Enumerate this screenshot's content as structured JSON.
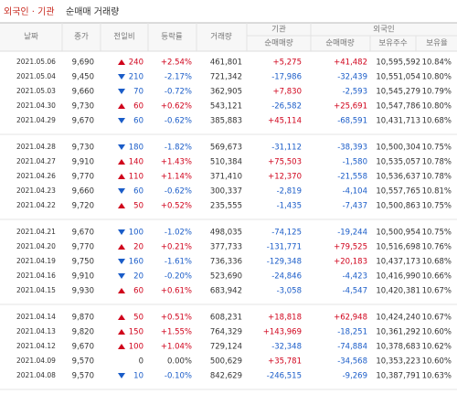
{
  "header": {
    "title_highlight": "외국인 · 기관",
    "title": "순매매 거래량"
  },
  "table": {
    "columns": [
      "날짜",
      "종가",
      "전일비",
      "등락률",
      "거래량"
    ],
    "group_headers": [
      "기관",
      "외국인"
    ],
    "subcolumns": [
      "순매매량",
      "순매매량",
      "보유주수",
      "보유율"
    ],
    "row_groups": [
      {
        "directions": [
          "up",
          "down",
          "down",
          "up",
          "down"
        ],
        "rows": [
          [
            "2021.05.06",
            "9,690",
            "240",
            "+2.54%",
            "461,801",
            "+5,275",
            "+41,482",
            "10,595,592",
            "10.84%"
          ],
          [
            "2021.05.04",
            "9,450",
            "210",
            "-2.17%",
            "721,342",
            "-17,986",
            "-32,439",
            "10,551,054",
            "10.80%"
          ],
          [
            "2021.05.03",
            "9,660",
            "70",
            "-0.72%",
            "362,905",
            "+7,830",
            "-2,593",
            "10,545,279",
            "10.79%"
          ],
          [
            "2021.04.30",
            "9,730",
            "60",
            "+0.62%",
            "543,121",
            "-26,582",
            "+25,691",
            "10,547,786",
            "10.80%"
          ],
          [
            "2021.04.29",
            "9,670",
            "60",
            "-0.62%",
            "385,883",
            "+45,114",
            "-68,591",
            "10,431,713",
            "10.68%"
          ]
        ]
      },
      {
        "directions": [
          "down",
          "up",
          "up",
          "down",
          "up"
        ],
        "rows": [
          [
            "2021.04.28",
            "9,730",
            "180",
            "-1.82%",
            "569,673",
            "-31,112",
            "-38,393",
            "10,500,304",
            "10.75%"
          ],
          [
            "2021.04.27",
            "9,910",
            "140",
            "+1.43%",
            "510,384",
            "+75,503",
            "-1,580",
            "10,535,057",
            "10.78%"
          ],
          [
            "2021.04.26",
            "9,770",
            "110",
            "+1.14%",
            "371,410",
            "+12,370",
            "-21,558",
            "10,536,637",
            "10.78%"
          ],
          [
            "2021.04.23",
            "9,660",
            "60",
            "-0.62%",
            "300,337",
            "-2,819",
            "-4,104",
            "10,557,765",
            "10.81%"
          ],
          [
            "2021.04.22",
            "9,720",
            "50",
            "+0.52%",
            "235,555",
            "-1,435",
            "-7,437",
            "10,500,863",
            "10.75%"
          ]
        ]
      },
      {
        "directions": [
          "down",
          "up",
          "down",
          "down",
          "up"
        ],
        "rows": [
          [
            "2021.04.21",
            "9,670",
            "100",
            "-1.02%",
            "498,035",
            "-74,125",
            "-19,244",
            "10,500,954",
            "10.75%"
          ],
          [
            "2021.04.20",
            "9,770",
            "20",
            "+0.21%",
            "377,733",
            "-131,771",
            "+79,525",
            "10,516,698",
            "10.76%"
          ],
          [
            "2021.04.19",
            "9,750",
            "160",
            "-1.61%",
            "736,336",
            "-129,348",
            "+20,183",
            "10,437,173",
            "10.68%"
          ],
          [
            "2021.04.16",
            "9,910",
            "20",
            "-0.20%",
            "523,690",
            "-24,846",
            "-4,423",
            "10,416,990",
            "10.66%"
          ],
          [
            "2021.04.15",
            "9,930",
            "60",
            "+0.61%",
            "683,942",
            "-3,058",
            "-4,547",
            "10,420,381",
            "10.67%"
          ]
        ]
      },
      {
        "directions": [
          "up",
          "up",
          "up",
          "none",
          "down"
        ],
        "rows": [
          [
            "2021.04.14",
            "9,870",
            "50",
            "+0.51%",
            "608,231",
            "+18,818",
            "+62,948",
            "10,424,240",
            "10.67%"
          ],
          [
            "2021.04.13",
            "9,820",
            "150",
            "+1.55%",
            "764,329",
            "+143,969",
            "-18,251",
            "10,361,292",
            "10.60%"
          ],
          [
            "2021.04.12",
            "9,670",
            "100",
            "+1.04%",
            "729,124",
            "-32,348",
            "-74,884",
            "10,378,683",
            "10.62%"
          ],
          [
            "2021.04.09",
            "9,570",
            "0",
            "0.00%",
            "500,629",
            "+35,781",
            "-34,568",
            "10,353,223",
            "10.60%"
          ],
          [
            "2021.04.08",
            "9,570",
            "10",
            "-0.10%",
            "842,629",
            "-246,515",
            "-9,269",
            "10,387,791",
            "10.63%"
          ]
        ]
      }
    ]
  }
}
